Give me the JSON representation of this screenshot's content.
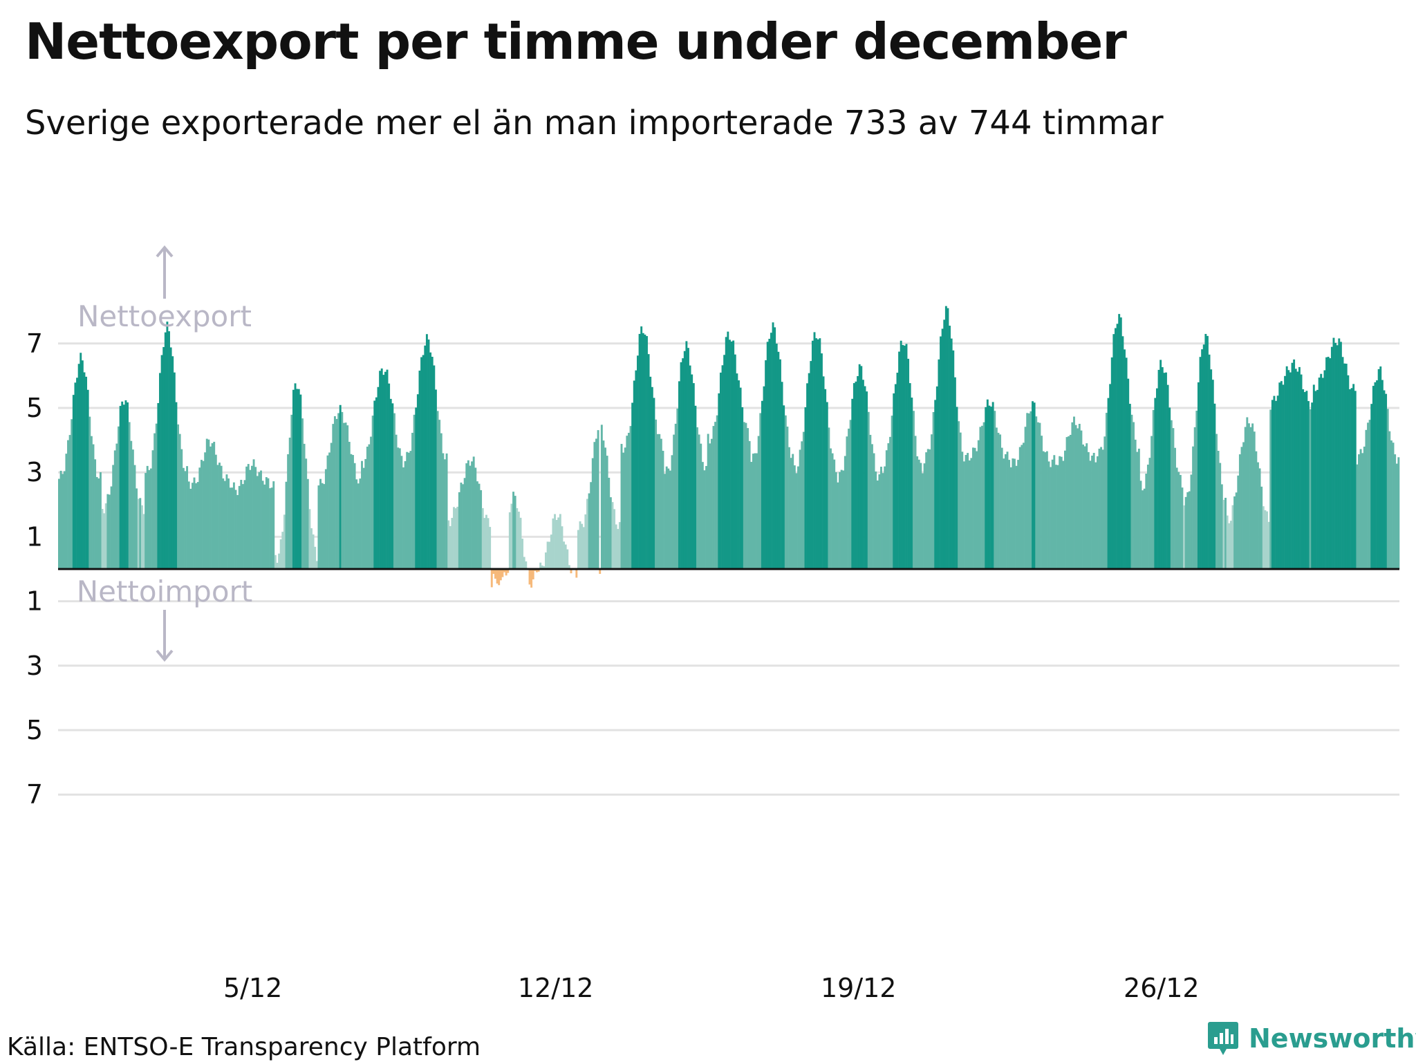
{
  "title": "Nettoexport per timme under december",
  "subtitle": "Sverige exporterade mer el än man importerade 733 av 744 timmar",
  "source": "Källa: ENTSO-E Transparency Platform",
  "brand": {
    "name": "Newsworthy",
    "color": "#2a9d8f",
    "icon": "bar-chart-logo-icon"
  },
  "annotations": {
    "export_label": "Nettoexport",
    "import_label": "Nettoimport",
    "arrow_color": "#b9b7c6"
  },
  "colors": {
    "dark": "#139887",
    "mid": "#62b6a8",
    "light": "#a8d4cc",
    "import": "#f6b97a",
    "zero_line": "#111111",
    "grid": "#e2e2e2"
  },
  "chart_data": {
    "type": "bar",
    "title": "Nettoexport per timme under december",
    "subtitle": "Sverige exporterade mer el än man importerade 733 av 744 timmar",
    "xlabel": "",
    "ylabel": "",
    "ylim": [
      -7.5,
      8.2
    ],
    "y_ticks": [
      7,
      5,
      3,
      1,
      -1,
      -3,
      -5,
      -7
    ],
    "y_tick_labels": [
      "7",
      "5",
      "3",
      "1",
      "1",
      "3",
      "5",
      "7"
    ],
    "x_tick_labels": [
      {
        "label": "5/12",
        "hour_index": 96
      },
      {
        "label": "12/12",
        "hour_index": 264
      },
      {
        "label": "19/12",
        "hour_index": 432
      },
      {
        "label": "26/12",
        "hour_index": 600
      }
    ],
    "grid": true,
    "hours": 744,
    "daily_profile": [
      {
        "day": 1,
        "low": 2.8,
        "high": 6.5
      },
      {
        "day": 2,
        "low": 1.8,
        "high": 5.2
      },
      {
        "day": 3,
        "low": 2.9,
        "high": 7.4
      },
      {
        "day": 4,
        "low": 2.6,
        "high": 3.9
      },
      {
        "day": 5,
        "low": 2.5,
        "high": 3.2
      },
      {
        "day": 6,
        "low": 0.4,
        "high": 5.8
      },
      {
        "day": 7,
        "low": 2.7,
        "high": 5.0
      },
      {
        "day": 8,
        "low": 3.4,
        "high": 6.3
      },
      {
        "day": 9,
        "low": 3.5,
        "high": 7.2
      },
      {
        "day": 10,
        "low": 1.5,
        "high": 3.4
      },
      {
        "day": 11,
        "low": -0.5,
        "high": 2.2
      },
      {
        "day": 12,
        "low": -0.2,
        "high": 1.6
      },
      {
        "day": 13,
        "low": 1.2,
        "high": 4.4
      },
      {
        "day": 14,
        "low": 3.7,
        "high": 7.4
      },
      {
        "day": 15,
        "low": 3.0,
        "high": 6.9
      },
      {
        "day": 16,
        "low": 4.1,
        "high": 7.3
      },
      {
        "day": 17,
        "low": 3.5,
        "high": 7.6
      },
      {
        "day": 18,
        "low": 3.2,
        "high": 7.4
      },
      {
        "day": 19,
        "low": 2.9,
        "high": 6.3
      },
      {
        "day": 20,
        "low": 3.1,
        "high": 7.1
      },
      {
        "day": 21,
        "low": 3.4,
        "high": 8.0
      },
      {
        "day": 22,
        "low": 3.4,
        "high": 5.1
      },
      {
        "day": 23,
        "low": 3.2,
        "high": 5.0
      },
      {
        "day": 24,
        "low": 3.3,
        "high": 4.5
      },
      {
        "day": 25,
        "low": 3.6,
        "high": 7.8
      },
      {
        "day": 26,
        "low": 2.6,
        "high": 6.4
      },
      {
        "day": 27,
        "low": 2.2,
        "high": 7.3
      },
      {
        "day": 28,
        "low": 1.6,
        "high": 4.7
      },
      {
        "day": 29,
        "low": 5.2,
        "high": 6.4
      },
      {
        "day": 30,
        "low": 5.6,
        "high": 7.1
      },
      {
        "day": 31,
        "low": 3.4,
        "high": 6.1
      }
    ],
    "import_hours": 11
  }
}
